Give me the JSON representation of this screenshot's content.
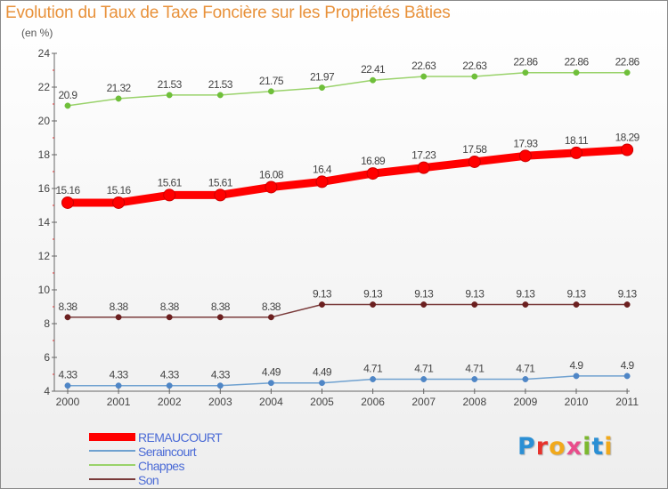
{
  "title": "Evolution du Taux de Taxe Foncière sur les Propriétés Bâties",
  "unit_label": "(en %)",
  "logo_text": "Proxiti",
  "colors": {
    "title": "#e8913a",
    "axis": "#555555",
    "legend_text": "#4b6bd6"
  },
  "chart_data": {
    "type": "line",
    "x": [
      "2000",
      "2001",
      "2002",
      "2003",
      "2004",
      "2005",
      "2006",
      "2007",
      "2008",
      "2009",
      "2010",
      "2011"
    ],
    "ylim": [
      4,
      24
    ],
    "yticks": [
      4,
      6,
      8,
      10,
      12,
      14,
      16,
      18,
      20,
      22,
      24
    ],
    "grid": false,
    "legend_position": "bottom-left",
    "series": [
      {
        "name": "REMAUCOURT",
        "color": "#ff0000",
        "marker_color": "#cc0000",
        "values": [
          15.16,
          15.16,
          15.61,
          15.61,
          16.08,
          16.4,
          16.89,
          17.23,
          17.58,
          17.93,
          18.11,
          18.29
        ],
        "labels": [
          "15.16",
          "15.16",
          "15.61",
          "15.61",
          "16.08",
          "16.4",
          "16.89",
          "17.23",
          "17.58",
          "17.93",
          "18.11",
          "18.29"
        ]
      },
      {
        "name": "Seraincourt",
        "color": "#6fa1d0",
        "marker_color": "#4f86c6",
        "values": [
          4.33,
          4.33,
          4.33,
          4.33,
          4.49,
          4.49,
          4.71,
          4.71,
          4.71,
          4.71,
          4.9,
          4.9
        ],
        "labels": [
          "4.33",
          "4.33",
          "4.33",
          "4.33",
          "4.49",
          "4.49",
          "4.71",
          "4.71",
          "4.71",
          "4.71",
          "4.9",
          "4.9"
        ]
      },
      {
        "name": "Chappes",
        "color": "#99d26a",
        "marker_color": "#6fbf3a",
        "values": [
          20.9,
          21.32,
          21.53,
          21.53,
          21.75,
          21.97,
          22.41,
          22.63,
          22.63,
          22.86,
          22.86,
          22.86
        ],
        "labels": [
          "20.9",
          "21.32",
          "21.53",
          "21.53",
          "21.75",
          "21.97",
          "22.41",
          "22.63",
          "22.63",
          "22.86",
          "22.86",
          "22.86"
        ]
      },
      {
        "name": "Son",
        "color": "#7a3b3b",
        "marker_color": "#6b1f1f",
        "values": [
          8.38,
          8.38,
          8.38,
          8.38,
          8.38,
          9.13,
          9.13,
          9.13,
          9.13,
          9.13,
          9.13,
          9.13
        ],
        "labels": [
          "8.38",
          "8.38",
          "8.38",
          "8.38",
          "8.38",
          "9.13",
          "9.13",
          "9.13",
          "9.13",
          "9.13",
          "9.13",
          "9.13"
        ]
      }
    ]
  }
}
